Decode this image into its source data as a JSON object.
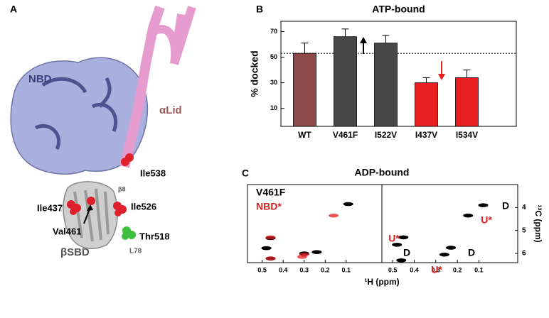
{
  "panel_labels": [
    "A",
    "B",
    "C"
  ],
  "structure": {
    "labels": [
      "NBD",
      "αLid",
      "Ile538",
      "β8",
      "Ile437",
      "Ile526",
      "Val461",
      "Thr518",
      "βSBD",
      "L78"
    ]
  },
  "chart_data": [
    {
      "type": "bar",
      "title": "ATP-bound",
      "ylabel": "% docked",
      "categories": [
        "WT",
        "V461F",
        "I522V",
        "I437V",
        "I534V"
      ],
      "values": [
        53,
        66,
        61,
        30,
        34
      ],
      "errors": [
        8,
        6,
        6,
        4,
        6
      ],
      "colors": [
        "#8e4a4a",
        "#474747",
        "#474747",
        "#e8201f",
        "#e8201f"
      ],
      "reference": 53,
      "ylim": [
        -4,
        78
      ],
      "yticks": [
        10,
        30,
        50,
        70
      ]
    },
    {
      "type": "scatter",
      "title": "ADP-bound",
      "xlabel": "¹H (ppm)",
      "xlim": [
        0.57,
        -0.07
      ],
      "xticks": [
        0.5,
        0.4,
        0.3,
        0.2,
        0.1
      ],
      "ylim": [
        3.0,
        6.4
      ],
      "series": [
        {
          "name": "V461F",
          "color": "#000000",
          "x": [
            0.09,
            0.46,
            0.48,
            0.24,
            0.3,
            0.46
          ],
          "y": [
            3.85,
            5.33,
            5.77,
            5.94,
            6.0,
            6.22
          ]
        },
        {
          "name": "NBD*",
          "color": "#e02020",
          "x": [
            0.16,
            0.46,
            0.3,
            0.31,
            0.46
          ],
          "y": [
            4.35,
            5.3,
            6.05,
            6.15,
            6.22
          ]
        }
      ]
    },
    {
      "type": "scatter",
      "ylabel": "¹³C (ppm)",
      "xlim": [
        0.55,
        -0.08
      ],
      "xticks": [
        0.5,
        0.4,
        0.3,
        0.2,
        0.1
      ],
      "ylim": [
        3.0,
        6.4
      ],
      "yticks": [
        4,
        5,
        6
      ],
      "series": [
        {
          "color": "#000000",
          "x": [
            0.08,
            0.15,
            0.45,
            0.48,
            0.23,
            0.26,
            0.46
          ],
          "y": [
            3.9,
            4.35,
            5.3,
            5.62,
            5.75,
            6.05,
            6.3
          ]
        }
      ],
      "annotations": [
        {
          "text": "D",
          "color": "#000000"
        },
        {
          "text": "U*",
          "color": "#e02020"
        },
        {
          "text": "U*",
          "color": "#e02020"
        },
        {
          "text": "D",
          "color": "#000000"
        },
        {
          "text": "D",
          "color": "#000000"
        },
        {
          "text": "U*",
          "color": "#e02020"
        }
      ]
    }
  ]
}
